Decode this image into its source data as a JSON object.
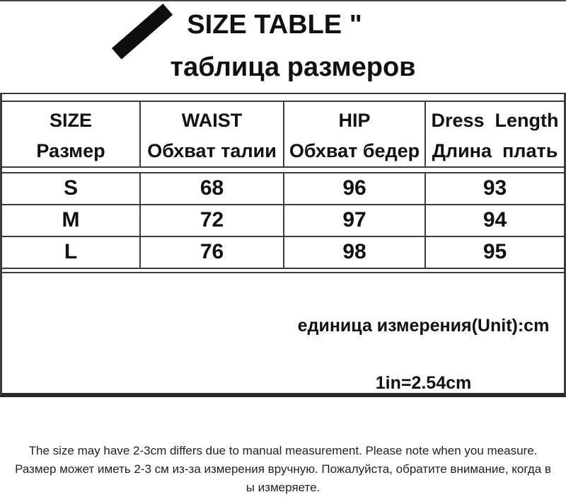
{
  "title": {
    "line1": "SIZE TABLE \"",
    "line2": "таблица размеров"
  },
  "size_table": {
    "headers": [
      {
        "en": "SIZE",
        "ru": "Размер"
      },
      {
        "en": "WAIST",
        "ru": "Обхват талии"
      },
      {
        "en": "HIP",
        "ru": "Обхват бедер"
      },
      {
        "en": "Dress  Length",
        "ru": "Длина  плать"
      }
    ],
    "rows": [
      [
        "S",
        "68",
        "96",
        "93"
      ],
      [
        "M",
        "72",
        "97",
        "94"
      ],
      [
        "L",
        "76",
        "98",
        "95"
      ]
    ]
  },
  "unit_info": {
    "line1": "единица измерения(Unit):cm",
    "line2": "1in=2.54cm"
  },
  "footer": {
    "line1": "The size may have 2-3cm differs due to manual measurement. Please note when you measure.",
    "line2": "Размер может иметь 2-3 см из-за измерения вручную. Пожалуйста, обратите внимание, когда в",
    "line3": "ы измеряете."
  },
  "colors": {
    "border": "#3b3b3b",
    "text": "#111111",
    "stripe": "#0f0f0f",
    "background": "#ffffff"
  },
  "chart_data": {
    "type": "table",
    "title": "SIZE TABLE / таблица размеров",
    "columns": [
      "SIZE (Размер)",
      "WAIST (Обхват талии)",
      "HIP (Обхват бедер)",
      "Dress Length (Длина плать)"
    ],
    "rows": [
      [
        "S",
        68,
        96,
        93
      ],
      [
        "M",
        72,
        97,
        94
      ],
      [
        "L",
        76,
        98,
        95
      ]
    ],
    "unit": "cm",
    "conversion": "1in=2.54cm"
  }
}
